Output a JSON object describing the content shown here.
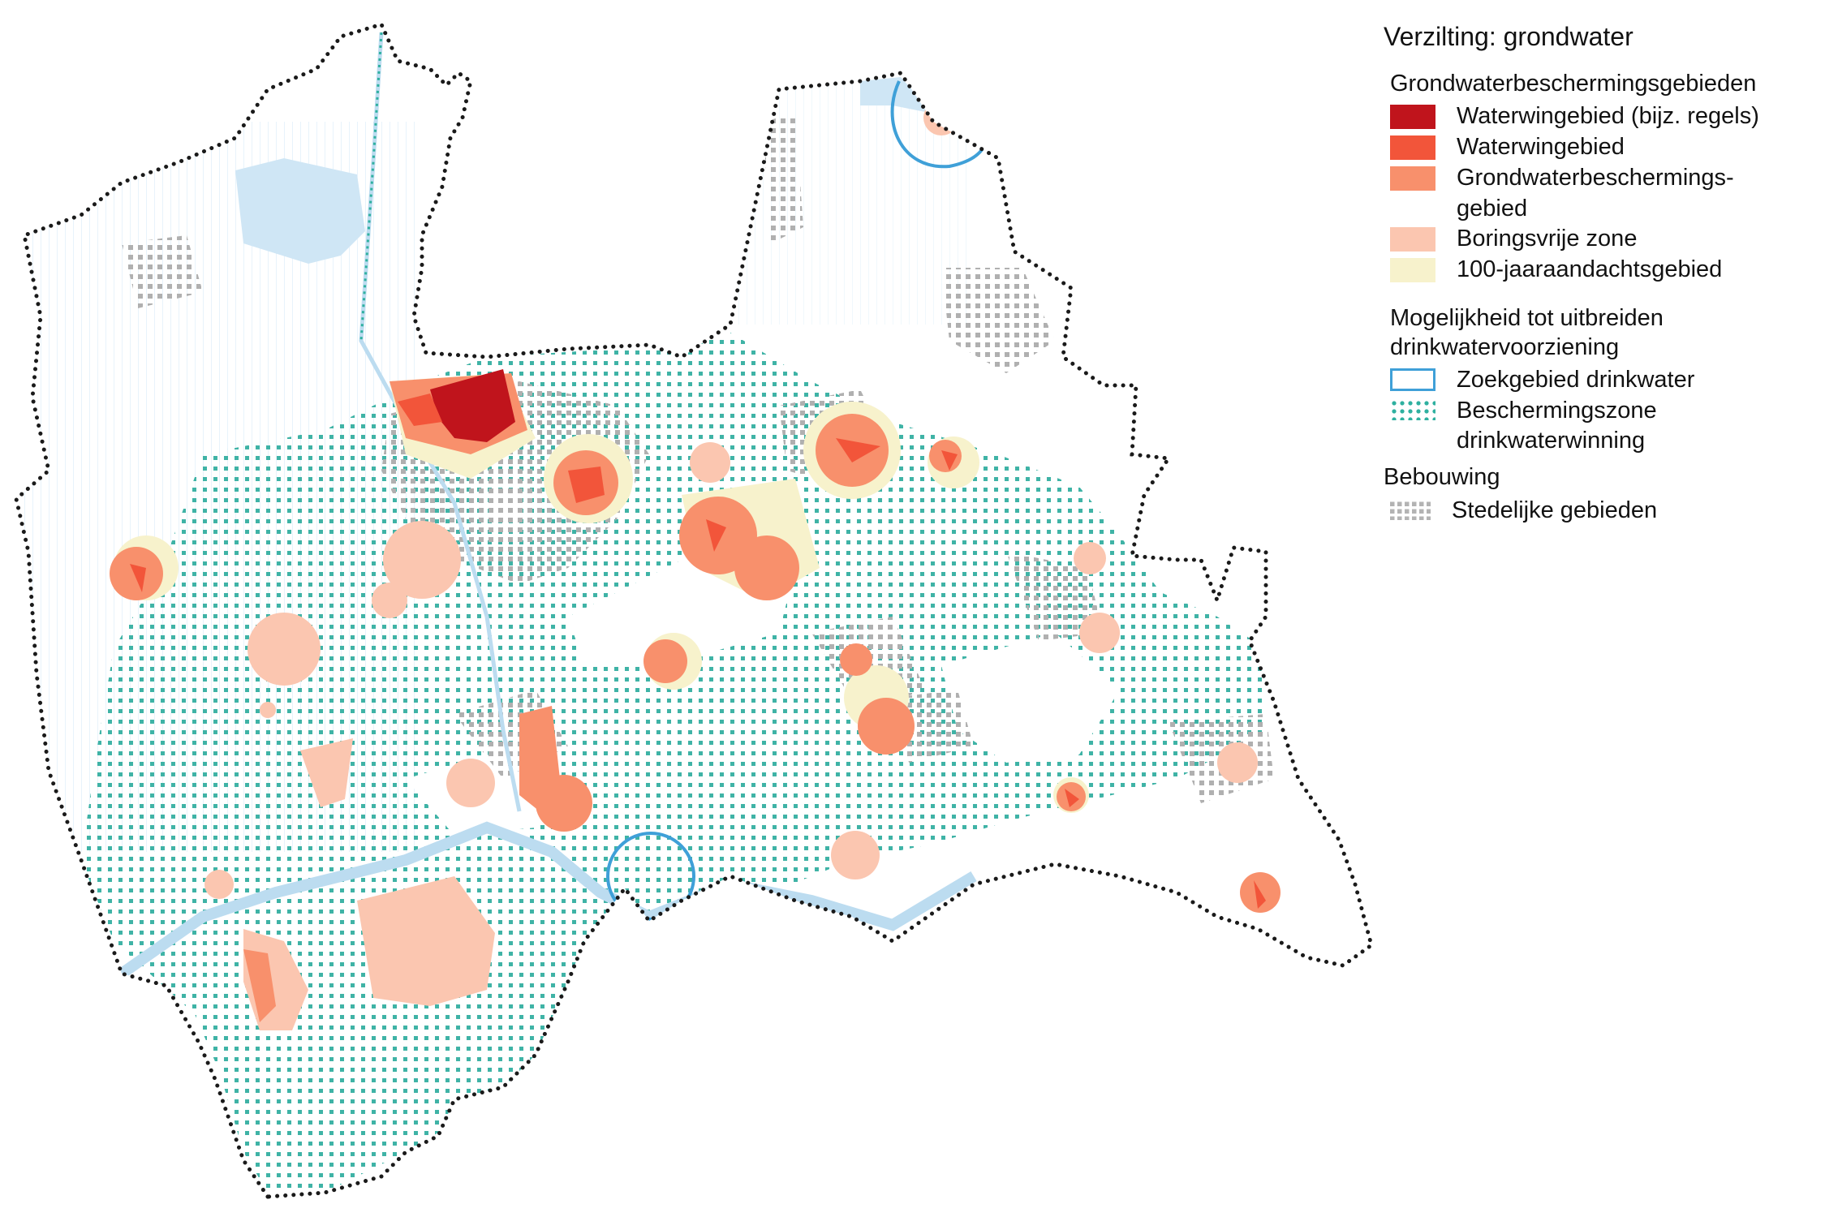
{
  "legend": {
    "title": "Verzilting: grondwater",
    "section1": "Grondwaterbeschermingsgebieden",
    "items1": [
      {
        "label": "Waterwingebied (bijz. regels)",
        "color": "#c0141c"
      },
      {
        "label": "Waterwingebied",
        "color": "#f2553a"
      },
      {
        "label": "Grondwaterbeschermings-\ngebied",
        "color": "#f8906c"
      },
      {
        "label": "Boringsvrije zone",
        "color": "#fbc6b0"
      },
      {
        "label": "100-jaaraandachtsgebied",
        "color": "#f7f2cc"
      }
    ],
    "section2": "Mogelijkheid tot uitbreiden\ndrinkwatervoorziening",
    "items2": [
      {
        "label": "Zoekgebied drinkwater",
        "icon": "outline-rectangle-icon",
        "color": "#3fa0d8"
      },
      {
        "label": "Beschermingszone\ndrinkwaterwinning",
        "icon": "teal-dots-icon",
        "color": "#2fb0a0"
      }
    ],
    "section3": "Bebouwing",
    "items3": [
      {
        "label": "Stedelijke gebieden",
        "icon": "grey-dots-icon",
        "color": "#b3b3b3"
      }
    ]
  },
  "map": {
    "boundary_color": "#1a1a1a",
    "water_color": "#cfe6f5",
    "zone_color": "#2fb0a0",
    "urban_color": "#b3b3b3"
  }
}
